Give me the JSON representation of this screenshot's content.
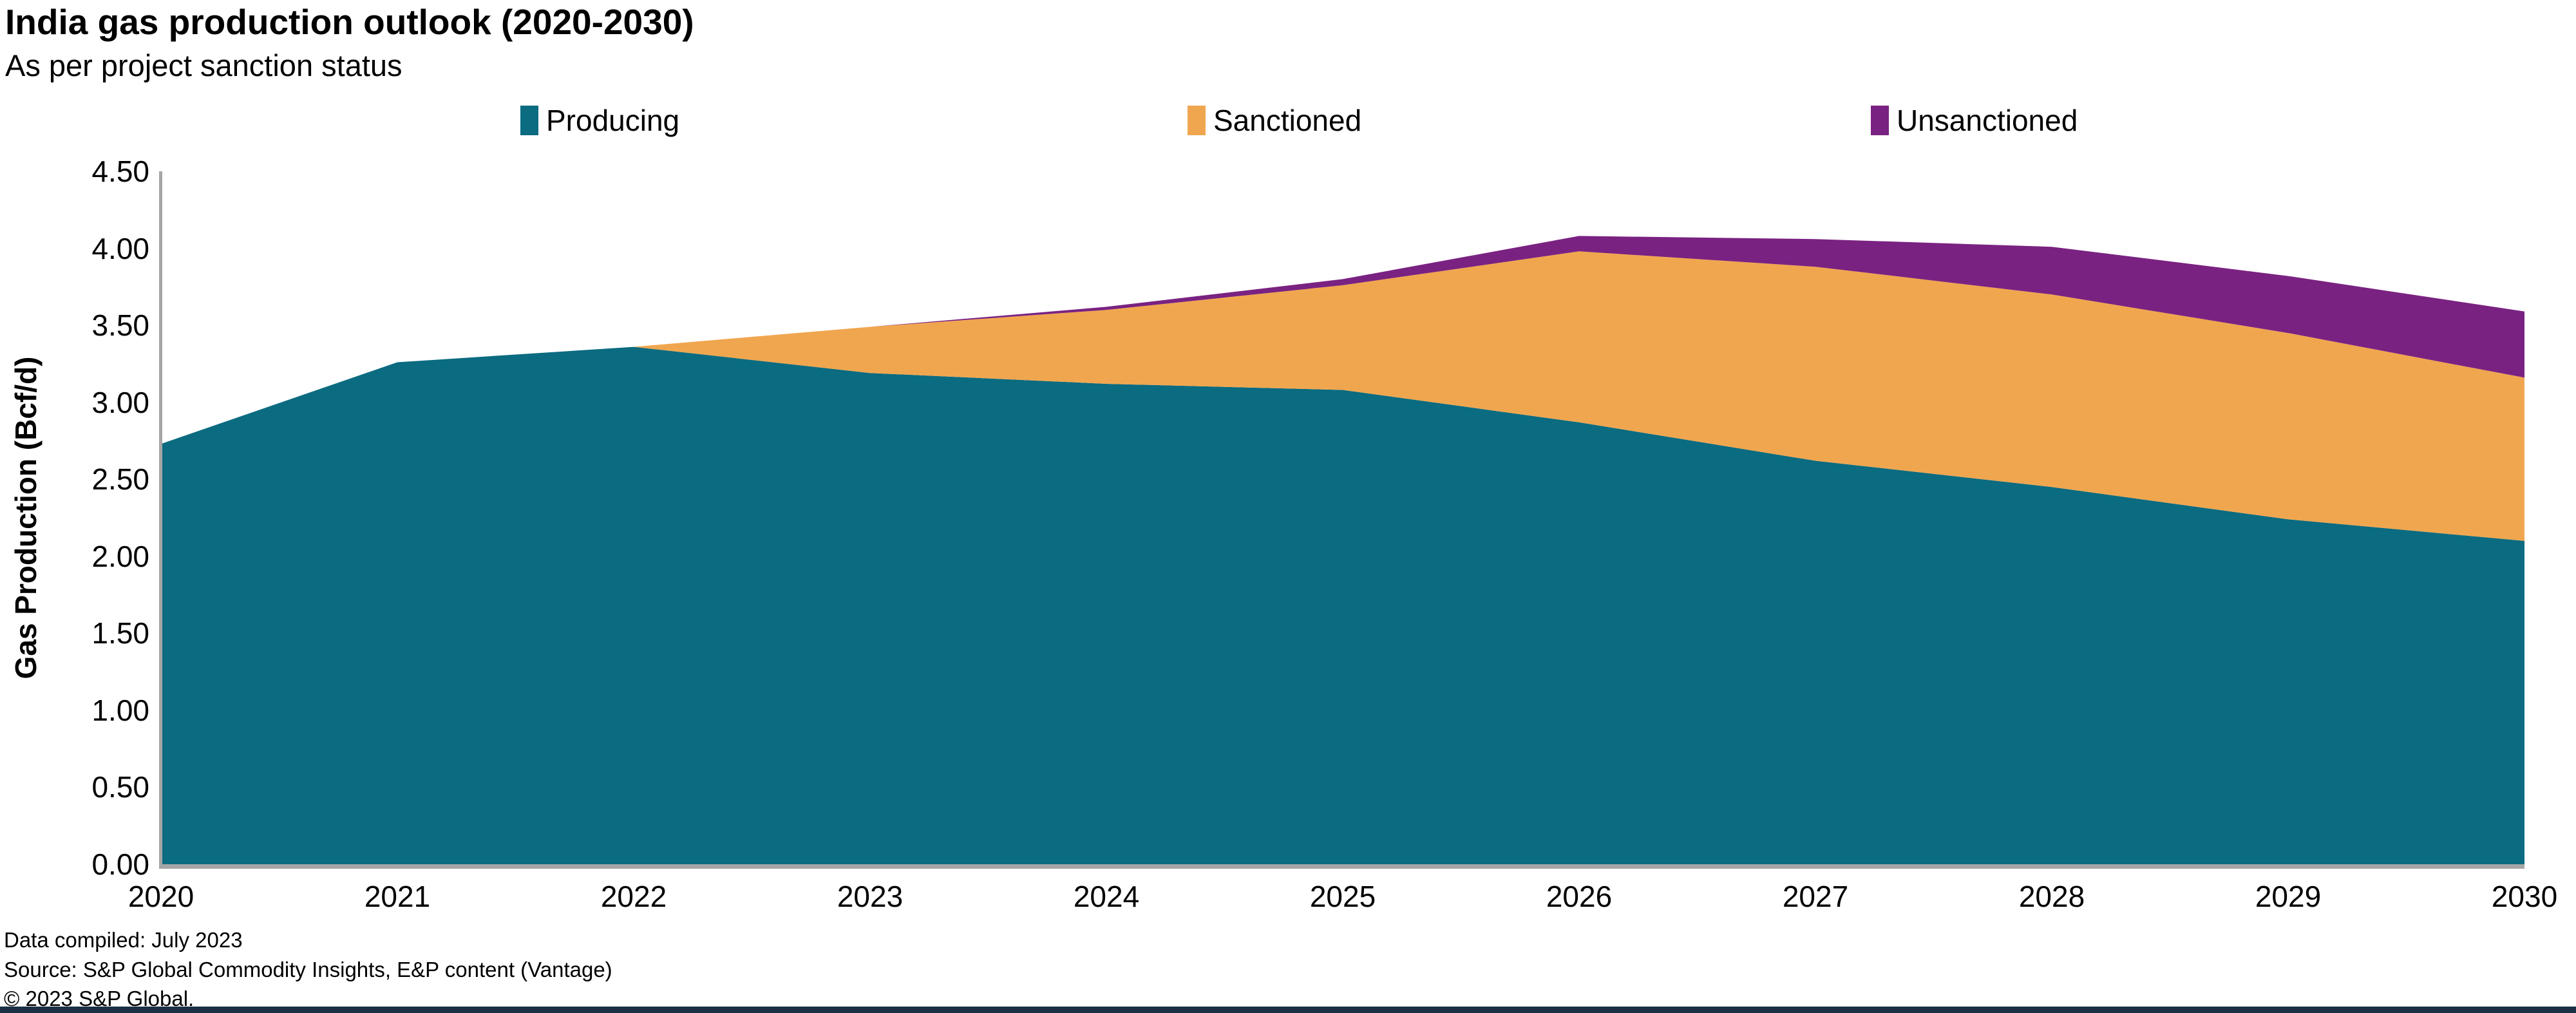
{
  "header": {
    "title": "India gas production outlook (2020-2030)",
    "subtitle": "As per project sanction status"
  },
  "legend": {
    "items": [
      {
        "label": "Producing",
        "color": "#0B6B80"
      },
      {
        "label": "Sanctioned",
        "color": "#F0A64F"
      },
      {
        "label": "Unsanctioned",
        "color": "#7A2282"
      }
    ]
  },
  "footer": {
    "compiled": "Data compiled: July 2023",
    "source": "Source: S&P Global Commodity Insights, E&P content (Vantage)",
    "copyright": "© 2023 S&P Global."
  },
  "colors": {
    "producing": "#0B6B80",
    "sanctioned": "#F0A64F",
    "unsanctioned": "#7A2282",
    "axis_line": "#a6a6a6",
    "bottom_bar": "#1B2F45"
  },
  "chart_data": {
    "type": "area",
    "stacked": true,
    "title": "India gas production outlook (2020-2030)",
    "subtitle": "As per project sanction status",
    "xlabel": "",
    "ylabel": "Gas Production (Bcf/d)",
    "ylim": [
      0,
      4.5
    ],
    "ytick_step": 0.5,
    "ytick_labels": [
      "0.00",
      "0.50",
      "1.00",
      "1.50",
      "2.00",
      "2.50",
      "3.00",
      "3.50",
      "4.00",
      "4.50"
    ],
    "grid": false,
    "legend_position": "top",
    "x": [
      2020,
      2021,
      2022,
      2023,
      2024,
      2025,
      2026,
      2027,
      2028,
      2029,
      2030
    ],
    "series": [
      {
        "name": "Producing",
        "color": "#0B6B80",
        "values": [
          2.73,
          3.26,
          3.36,
          3.19,
          3.12,
          3.08,
          2.87,
          2.62,
          2.45,
          2.24,
          2.1
        ]
      },
      {
        "name": "Sanctioned",
        "color": "#F0A64F",
        "values": [
          0.0,
          0.0,
          0.0,
          0.3,
          0.48,
          0.68,
          1.11,
          1.26,
          1.25,
          1.21,
          1.06
        ]
      },
      {
        "name": "Unsanctioned",
        "color": "#7A2282",
        "values": [
          0.0,
          0.0,
          0.0,
          0.0,
          0.02,
          0.04,
          0.1,
          0.18,
          0.31,
          0.37,
          0.43
        ]
      }
    ],
    "totals": [
      2.73,
      3.26,
      3.36,
      3.49,
      3.62,
      3.8,
      4.08,
      4.06,
      4.01,
      3.82,
      3.59
    ]
  }
}
